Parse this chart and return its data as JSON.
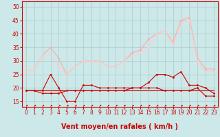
{
  "x": [
    0,
    1,
    2,
    3,
    4,
    5,
    6,
    7,
    8,
    9,
    10,
    11,
    12,
    13,
    14,
    15,
    16,
    17,
    18,
    19,
    20,
    21,
    22,
    23
  ],
  "background_color": "#cce8e8",
  "grid_color": "#aacccc",
  "xlabel": "Vent moyen/en rafales ( km/h )",
  "xlabel_color": "#cc0000",
  "xlabel_fontsize": 7,
  "tick_color": "#cc0000",
  "tick_fontsize": 5.5,
  "ylim": [
    13,
    52
  ],
  "yticks": [
    15,
    20,
    25,
    30,
    35,
    40,
    45,
    50
  ],
  "lines": [
    {
      "values": [
        26,
        27,
        32,
        35,
        31,
        25,
        28,
        30,
        30,
        30,
        28,
        28,
        30,
        33,
        34,
        38,
        40,
        41,
        37,
        45,
        46,
        31,
        27,
        27
      ],
      "color": "#ffaaaa",
      "marker": "D",
      "markersize": 1.5,
      "linewidth": 0.8
    },
    {
      "values": [
        26,
        27,
        32,
        32,
        28,
        25,
        28,
        30,
        30,
        30,
        28,
        28,
        30,
        32,
        33,
        35,
        40,
        41,
        36,
        44,
        45,
        30,
        26,
        26
      ],
      "color": "#ffcccc",
      "marker": "D",
      "markersize": 1.5,
      "linewidth": 0.8
    },
    {
      "values": [
        19,
        19,
        19,
        25,
        20,
        15,
        15,
        21,
        21,
        20,
        20,
        20,
        20,
        20,
        20,
        22,
        25,
        25,
        24,
        26,
        21,
        21,
        20,
        18
      ],
      "color": "#cc0000",
      "marker": "D",
      "markersize": 1.5,
      "linewidth": 0.8
    },
    {
      "values": [
        19,
        19,
        18,
        18,
        18,
        19,
        19,
        19,
        19,
        19,
        19,
        19,
        19,
        20,
        20,
        20,
        20,
        19,
        19,
        19,
        19,
        20,
        17,
        17
      ],
      "color": "#cc0000",
      "marker": "D",
      "markersize": 1.5,
      "linewidth": 0.8
    },
    {
      "values": [
        19,
        19,
        19,
        19,
        19,
        19,
        19,
        19,
        19,
        19,
        19,
        19,
        19,
        19,
        19,
        19,
        19,
        19,
        19,
        19,
        19,
        19,
        19,
        19
      ],
      "color": "#cc0000",
      "marker": null,
      "markersize": 0,
      "linewidth": 0.8
    }
  ],
  "wind_arrows_color": "#cc0000",
  "arrow_angles": [
    225,
    225,
    225,
    225,
    225,
    225,
    225,
    225,
    225,
    225,
    225,
    225,
    225,
    225,
    225,
    225,
    225,
    225,
    225,
    225,
    225,
    225,
    225,
    225
  ]
}
